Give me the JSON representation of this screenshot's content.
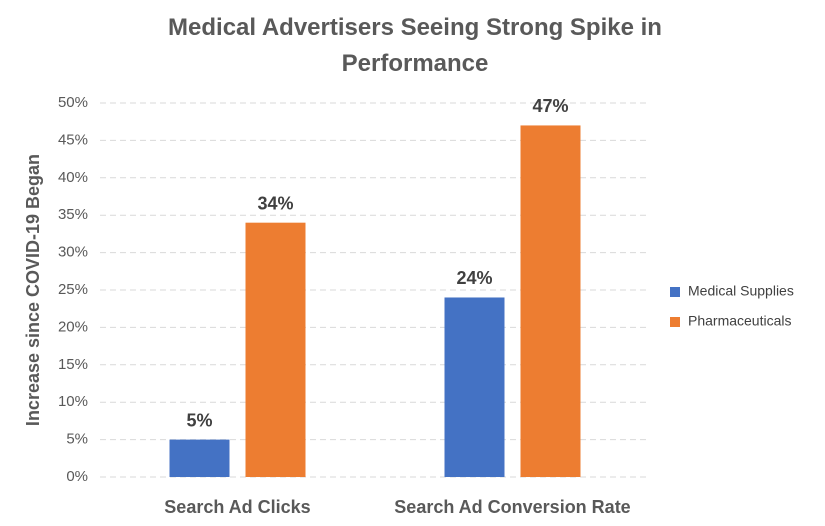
{
  "chart_data": {
    "type": "bar",
    "title": "Medical Advertisers Seeing Strong Spike in Performance",
    "y_label": "Increase since COVID-19 Began",
    "categories": [
      "Search Ad Clicks",
      "Search Ad Conversion Rate"
    ],
    "series": [
      {
        "name": "Medical Supplies",
        "color": "#4472c4",
        "values": [
          5,
          24
        ],
        "value_labels": [
          "5%",
          "24%"
        ]
      },
      {
        "name": "Pharmaceuticals",
        "color": "#ed7d31",
        "values": [
          34,
          47
        ],
        "value_labels": [
          "34%",
          "47%"
        ]
      }
    ],
    "ylim": [
      0,
      50
    ],
    "yticks": [
      {
        "value": 0,
        "label": "0%"
      },
      {
        "value": 5,
        "label": "5%"
      },
      {
        "value": 10,
        "label": "10%"
      },
      {
        "value": 15,
        "label": "15%"
      },
      {
        "value": 20,
        "label": "20%"
      },
      {
        "value": 25,
        "label": "25%"
      },
      {
        "value": 30,
        "label": "30%"
      },
      {
        "value": 35,
        "label": "35%"
      },
      {
        "value": 40,
        "label": "40%"
      },
      {
        "value": 45,
        "label": "45%"
      },
      {
        "value": 50,
        "label": "50%"
      }
    ],
    "grid": true,
    "legend": "right"
  }
}
